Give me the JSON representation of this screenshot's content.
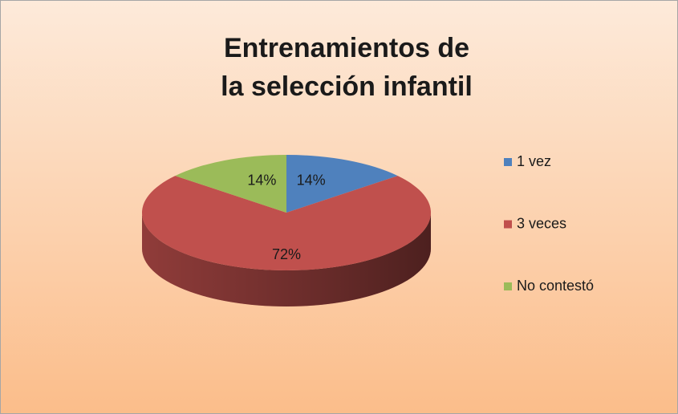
{
  "chart_data": {
    "type": "pie",
    "title": [
      "Entrenamientos de",
      "la selección infantil"
    ],
    "categories": [
      "1 vez",
      "3 veces",
      "No contestó"
    ],
    "values": [
      14,
      72,
      14
    ],
    "value_labels": [
      "14%",
      "72%",
      "14%"
    ],
    "colors": [
      "#4f81bd",
      "#c0504d",
      "#9bbb59"
    ],
    "legend": "right"
  }
}
